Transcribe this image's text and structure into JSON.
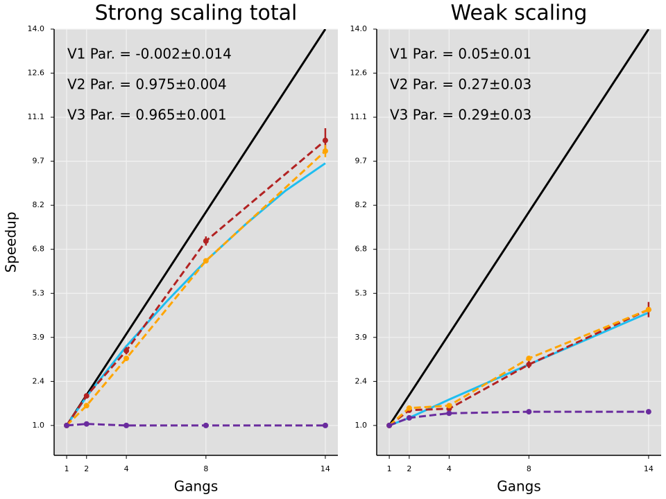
{
  "chart_data": [
    {
      "type": "line",
      "title": "Strong scaling total",
      "xlabel": "Gangs",
      "ylabel": "Speedup",
      "annotations": [
        "V1 Par. = -0.002±0.014",
        "V2 Par. = 0.975±0.004",
        "V3 Par. = 0.965±0.001"
      ],
      "xlim": [
        0.37,
        14.63
      ],
      "ylim": [
        0.02,
        14.0
      ],
      "xticks": [
        1,
        2,
        4,
        8,
        14
      ],
      "yticks": [
        {
          "value": 1.0,
          "label": "1.0"
        },
        {
          "value": 2.444,
          "label": "2.4"
        },
        {
          "value": 3.889,
          "label": "3.9"
        },
        {
          "value": 5.333,
          "label": "5.3"
        },
        {
          "value": 6.778,
          "label": "6.8"
        },
        {
          "value": 8.222,
          "label": "8.2"
        },
        {
          "value": 9.667,
          "label": "9.7"
        },
        {
          "value": 11.111,
          "label": "11.1"
        },
        {
          "value": 12.556,
          "label": "12.6"
        },
        {
          "value": 14.0,
          "label": "14.0"
        }
      ],
      "grid": true,
      "series": [
        {
          "color": "#000000",
          "dashed": false,
          "markers": false,
          "x": [
            1,
            14
          ],
          "values": [
            1,
            14
          ]
        },
        {
          "color": "#1ebef0",
          "dashed": false,
          "markers": false,
          "x": [
            1,
            2,
            4,
            6,
            8,
            10,
            12,
            14
          ],
          "values": [
            1,
            1.95,
            3.6,
            5.05,
            6.4,
            7.6,
            8.7,
            9.6
          ]
        },
        {
          "color": "#b22222",
          "dashed": true,
          "markers": true,
          "x": [
            1,
            2,
            4,
            8,
            14
          ],
          "values": [
            1,
            1.97,
            3.45,
            7.05,
            10.35
          ],
          "errors": [
            null,
            null,
            0.12,
            0.15,
            0.4
          ]
        },
        {
          "color": "#ffa500",
          "dashed": true,
          "markers": true,
          "x": [
            1,
            2,
            4,
            8,
            14
          ],
          "values": [
            1,
            1.65,
            3.2,
            6.4,
            10.0
          ],
          "errors": [
            null,
            null,
            null,
            null,
            0.2
          ]
        },
        {
          "color": "#6a2c9e",
          "dashed": true,
          "markers": true,
          "x": [
            1,
            2,
            4,
            8,
            14
          ],
          "values": [
            1.0,
            1.05,
            1.0,
            1.0,
            1.0
          ]
        }
      ]
    },
    {
      "type": "line",
      "title": "Weak scaling",
      "xlabel": "Gangs",
      "annotations": [
        "V1 Par. = 0.05±0.01",
        "V2 Par. = 0.27±0.03",
        "V3 Par. = 0.29±0.03"
      ],
      "xlim": [
        0.37,
        14.63
      ],
      "ylim": [
        0.02,
        14.0
      ],
      "xticks": [
        1,
        2,
        4,
        8,
        14
      ],
      "yticks": [
        {
          "value": 1.0,
          "label": "1.0"
        },
        {
          "value": 2.444,
          "label": "2.4"
        },
        {
          "value": 3.889,
          "label": "3.9"
        },
        {
          "value": 5.333,
          "label": "5.3"
        },
        {
          "value": 6.778,
          "label": "6.8"
        },
        {
          "value": 8.222,
          "label": "8.2"
        },
        {
          "value": 9.667,
          "label": "9.7"
        },
        {
          "value": 11.111,
          "label": "11.1"
        },
        {
          "value": 12.556,
          "label": "12.6"
        },
        {
          "value": 14.0,
          "label": "14.0"
        }
      ],
      "grid": true,
      "series": [
        {
          "color": "#000000",
          "dashed": false,
          "markers": false,
          "x": [
            1,
            14
          ],
          "values": [
            1,
            14
          ]
        },
        {
          "color": "#1ebef0",
          "dashed": false,
          "markers": false,
          "x": [
            1,
            2,
            4,
            8,
            14
          ],
          "values": [
            1,
            1.25,
            1.85,
            3.0,
            4.7
          ]
        },
        {
          "color": "#b22222",
          "dashed": true,
          "markers": true,
          "x": [
            1,
            2,
            4,
            8,
            14
          ],
          "values": [
            1,
            1.5,
            1.55,
            3.0,
            4.8
          ],
          "errors": [
            null,
            null,
            null,
            0.12,
            0.25
          ]
        },
        {
          "color": "#ffa500",
          "dashed": true,
          "markers": true,
          "x": [
            1,
            2,
            4,
            8,
            14
          ],
          "values": [
            1,
            1.57,
            1.65,
            3.2,
            4.8
          ]
        },
        {
          "color": "#6a2c9e",
          "dashed": true,
          "markers": true,
          "x": [
            1,
            2,
            4,
            8,
            14
          ],
          "values": [
            1,
            1.25,
            1.4,
            1.45,
            1.45
          ]
        }
      ]
    }
  ]
}
